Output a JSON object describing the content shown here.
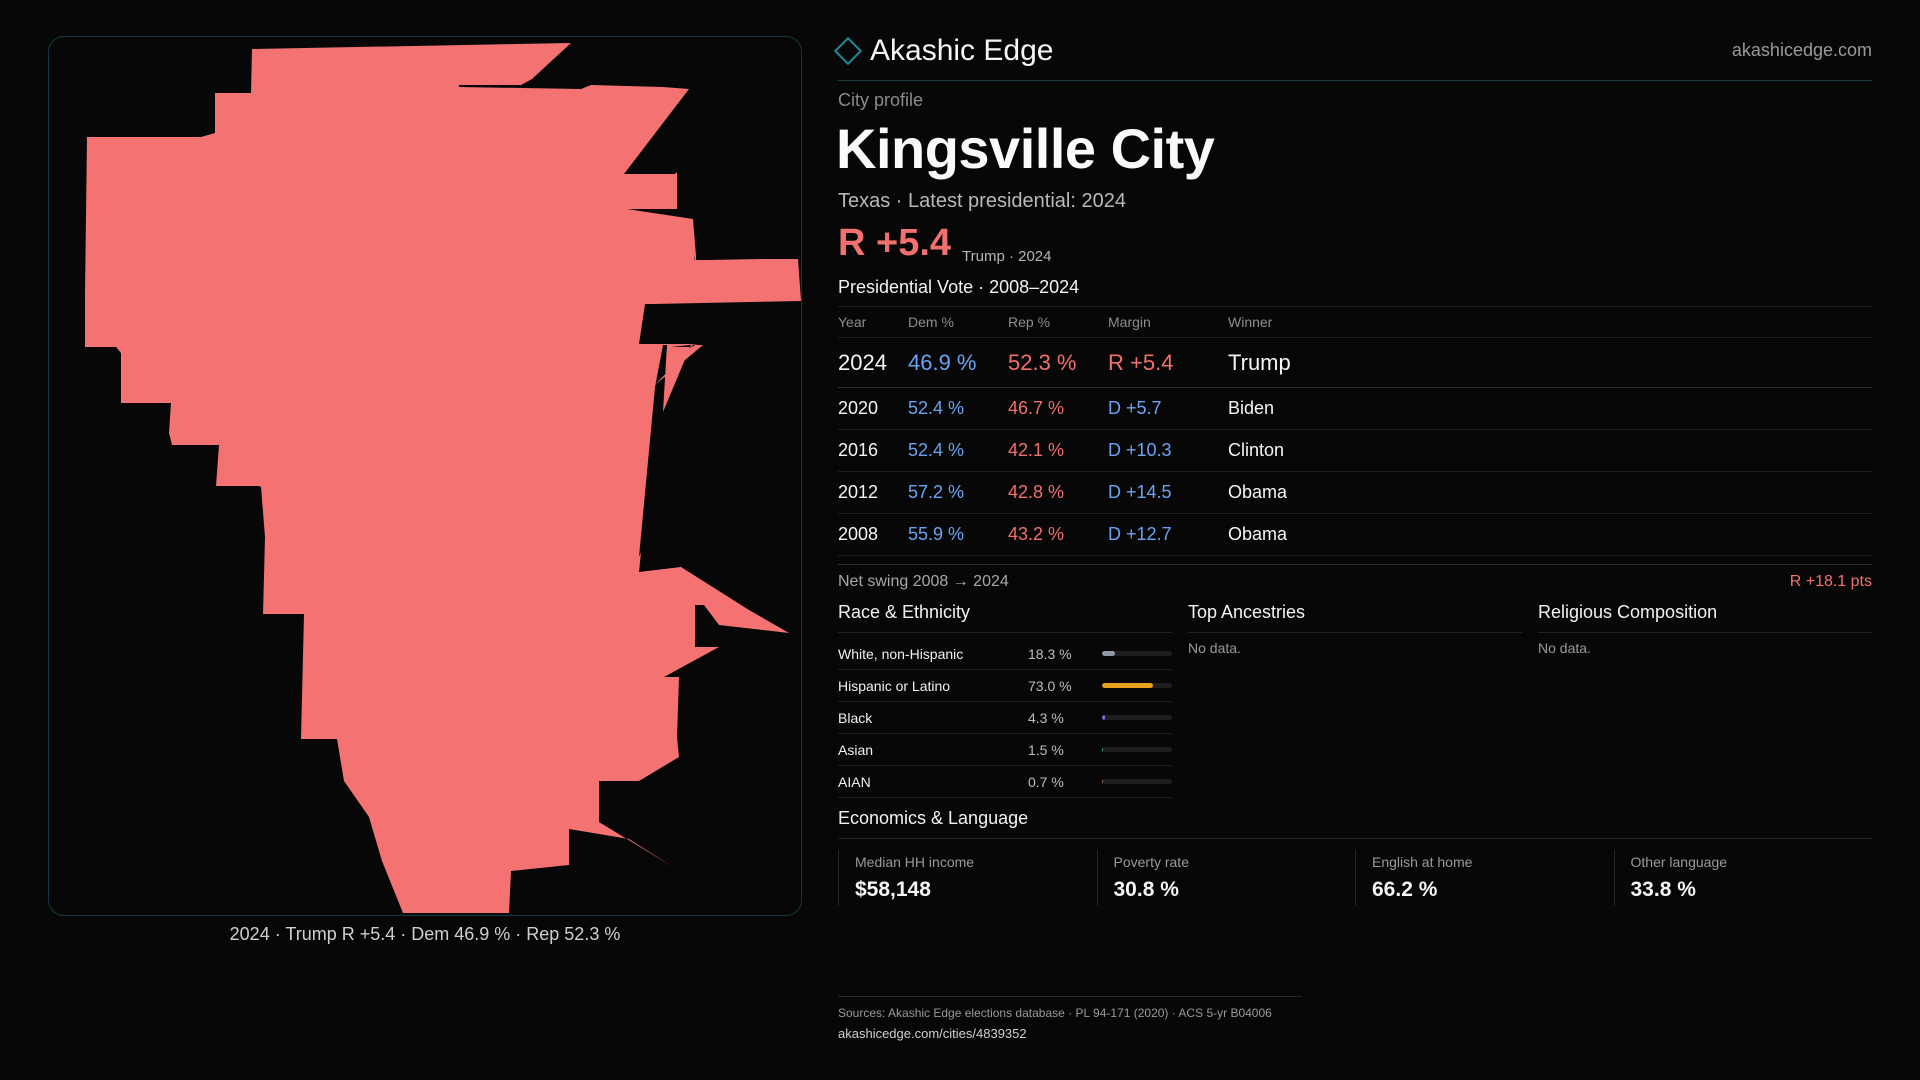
{
  "brand": {
    "name": "Akashic Edge",
    "site": "akashicedge.com"
  },
  "profile": {
    "kicker": "City profile",
    "city": "Kingsville City",
    "subline": "Texas · Latest presidential: 2024",
    "headline_margin": "R +5.4",
    "headline_note": "Trump · 2024"
  },
  "map": {
    "fill_color": "#f47272",
    "caption": "2024 · Trump R +5.4 · Dem 46.9 % · Rep 52.3 %"
  },
  "vote": {
    "title": "Presidential Vote · 2008–2024",
    "headers": {
      "year": "Year",
      "dem": "Dem %",
      "rep": "Rep %",
      "margin": "Margin",
      "winner": "Winner"
    },
    "rows": [
      {
        "year": "2024",
        "dem": "46.9 %",
        "rep": "52.3 %",
        "margin": "R +5.4",
        "winner": "Trump"
      },
      {
        "year": "2020",
        "dem": "52.4 %",
        "rep": "46.7 %",
        "margin": "D +5.7",
        "winner": "Biden"
      },
      {
        "year": "2016",
        "dem": "52.4 %",
        "rep": "42.1 %",
        "margin": "D +10.3",
        "winner": "Clinton"
      },
      {
        "year": "2012",
        "dem": "57.2 %",
        "rep": "42.8 %",
        "margin": "D +14.5",
        "winner": "Obama"
      },
      {
        "year": "2008",
        "dem": "55.9 %",
        "rep": "43.2 %",
        "margin": "D +12.7",
        "winner": "Obama"
      }
    ],
    "swing_label": "Net swing 2008 → 2024",
    "swing_value": "R +18.1 pts"
  },
  "race": {
    "title": "Race & Ethnicity",
    "rows": [
      {
        "name": "White, non-Hispanic",
        "pct": "18.3 %",
        "share": 0.183,
        "color": "#8e9aa8"
      },
      {
        "name": "Hispanic or Latino",
        "pct": "73.0 %",
        "share": 0.73,
        "color": "#e6a11f"
      },
      {
        "name": "Black",
        "pct": "4.3 %",
        "share": 0.043,
        "color": "#7b6be0"
      },
      {
        "name": "Asian",
        "pct": "1.5 %",
        "share": 0.015,
        "color": "#36b2a3"
      },
      {
        "name": "AIAN",
        "pct": "0.7 %",
        "share": 0.007,
        "color": "#9a6b4a"
      }
    ]
  },
  "ancestries": {
    "title": "Top Ancestries",
    "empty": "No data."
  },
  "religion": {
    "title": "Religious Composition",
    "empty": "No data."
  },
  "economics": {
    "title": "Economics & Language",
    "cells": [
      {
        "label": "Median HH income",
        "value": "$58,148"
      },
      {
        "label": "Poverty rate",
        "value": "30.8 %"
      },
      {
        "label": "English at home",
        "value": "66.2 %"
      },
      {
        "label": "Other language",
        "value": "33.8 %"
      }
    ]
  },
  "sources": {
    "line": "Sources: Akashic Edge elections database · PL 94-171 (2020) · ACS 5-yr B04006",
    "url": "akashicedge.com/cities/4839352"
  }
}
